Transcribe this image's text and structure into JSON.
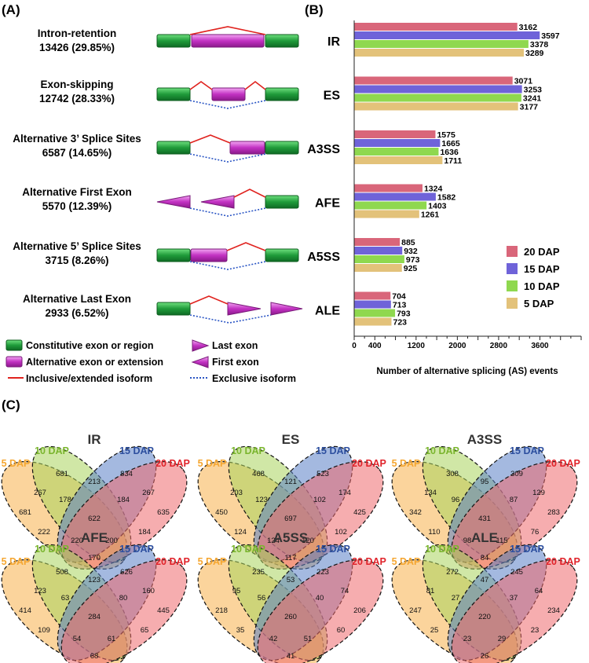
{
  "panels": {
    "a": "(A)",
    "b": "(B)",
    "c": "(C)"
  },
  "panel_a": {
    "events": [
      {
        "name": "Intron-retention",
        "stat": "13426 (29.85%)",
        "diagram": "ir"
      },
      {
        "name": "Exon-skipping",
        "stat": "12742 (28.33%)",
        "diagram": "es"
      },
      {
        "name": "Alternative 3’ Splice Sites",
        "stat": "6587 (14.65%)",
        "diagram": "a3ss"
      },
      {
        "name": "Alternative First Exon",
        "stat": "5570 (12.39%)",
        "diagram": "afe"
      },
      {
        "name": "Alternative 5’ Splice Sites",
        "stat": "3715 (8.26%)",
        "diagram": "a5ss"
      },
      {
        "name": "Alternative Last Exon",
        "stat": "2933 (6.52%)",
        "diagram": "ale"
      }
    ],
    "legend": {
      "constitutive": "Constitutive exon or region",
      "alternative": "Alternative exon or extension",
      "last": "Last exon",
      "first": "First exon",
      "inclusive": "Inclusive/extended isoform",
      "exclusive": "Exclusive isoform"
    }
  },
  "colors": {
    "dap20": "#d9667a",
    "dap15": "#6f63d9",
    "dap10": "#8fd84f",
    "dap5": "#e3c27a",
    "exon_green": "#1f9b3a",
    "exon_magenta": "#c231c2",
    "inclusive_line": "#e0231f",
    "exclusive_line": "#2a55c4"
  },
  "chart_data": [
    {
      "type": "bar",
      "orientation": "horizontal",
      "categories": [
        "IR",
        "ES",
        "A3SS",
        "AFE",
        "A5SS",
        "ALE"
      ],
      "series": [
        {
          "name": "20 DAP",
          "values": [
            3162,
            3071,
            1575,
            1324,
            885,
            704
          ]
        },
        {
          "name": "15 DAP",
          "values": [
            3597,
            3253,
            1665,
            1582,
            932,
            713
          ]
        },
        {
          "name": "10 DAP",
          "values": [
            3378,
            3241,
            1636,
            1403,
            973,
            793
          ]
        },
        {
          "name": "5 DAP",
          "values": [
            3289,
            3177,
            1711,
            1261,
            925,
            723
          ]
        }
      ],
      "xlabel": "Number of alternative splicing (AS) events",
      "xticks": [
        0,
        400,
        1200,
        2000,
        2800,
        3600
      ],
      "xlim": [
        0,
        4400
      ],
      "legend_position": "right"
    },
    {
      "type": "venn",
      "set_labels": [
        "5 DAP",
        "10 DAP",
        "15 DAP",
        "20 DAP"
      ],
      "set_colors": [
        "#f5a630",
        "#7ab52e",
        "#2d4f9f",
        "#e0232a"
      ],
      "diagrams": [
        {
          "title": "IR",
          "regions": {
            "A": 681,
            "B": 681,
            "C": 834,
            "D": 635,
            "AB": 267,
            "BC": 213,
            "CD": 267,
            "AC": 222,
            "BD": 184,
            "AD": 170,
            "ABC": 178,
            "BCD": 184,
            "ACD": 200,
            "ABD": 220,
            "ABCD": 622
          }
        },
        {
          "title": "ES",
          "regions": {
            "A": 450,
            "B": 468,
            "C": 523,
            "D": 425,
            "AB": 203,
            "BC": 121,
            "CD": 174,
            "AC": 124,
            "BD": 102,
            "AD": 117,
            "ABC": 123,
            "BCD": 102,
            "ACD": 120,
            "ABD": 124,
            "ABCD": 697
          }
        },
        {
          "title": "A3SS",
          "regions": {
            "A": 342,
            "B": 308,
            "C": 309,
            "D": 283,
            "AB": 134,
            "BC": 95,
            "CD": 129,
            "AC": 110,
            "BD": 76,
            "AD": 84,
            "ABC": 96,
            "BCD": 87,
            "ACD": 115,
            "ABD": 98,
            "ABCD": 431
          }
        },
        {
          "title": "AFE",
          "regions": {
            "A": 414,
            "B": 508,
            "C": 626,
            "D": 445,
            "AB": 123,
            "BC": 123,
            "CD": 160,
            "AC": 109,
            "BD": 65,
            "AD": 68,
            "ABC": 63,
            "BCD": 80,
            "ACD": 61,
            "ABD": 54,
            "ABCD": 284
          }
        },
        {
          "title": "A5SS",
          "regions": {
            "A": 218,
            "B": 235,
            "C": 223,
            "D": 206,
            "AB": 95,
            "BC": 53,
            "CD": 74,
            "AC": 35,
            "BD": 60,
            "AD": 41,
            "ABC": 56,
            "BCD": 40,
            "ACD": 51,
            "ABD": 42,
            "ABCD": 260
          }
        },
        {
          "title": "ALE",
          "regions": {
            "A": 247,
            "B": 272,
            "C": 245,
            "D": 234,
            "AB": 81,
            "BC": 47,
            "CD": 64,
            "AC": 25,
            "BD": 23,
            "AD": 26,
            "ABC": 27,
            "BCD": 37,
            "ACD": 29,
            "ABD": 23,
            "ABCD": 220
          }
        }
      ]
    }
  ]
}
